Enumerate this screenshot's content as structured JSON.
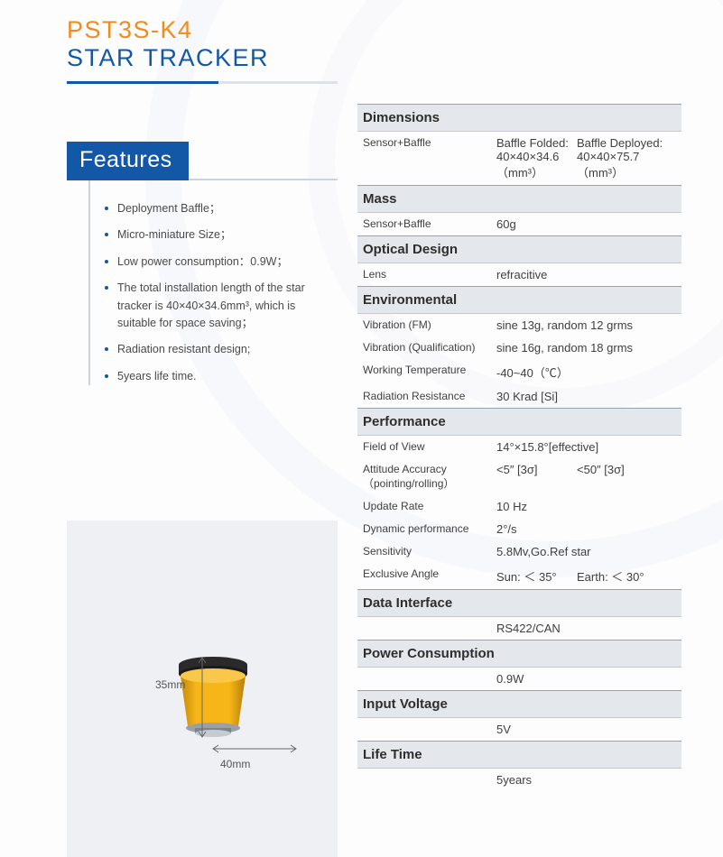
{
  "colors": {
    "accent": "#f28b1e",
    "accent_dark": "#1358a6",
    "heading_bg": "#1358a6",
    "section_bg": "#e4e7ec",
    "text": "#4a4a4a",
    "product_yellow": "#f7b618",
    "product_dark": "#2e2e2e",
    "frame_bg": "#eef0f3"
  },
  "title": {
    "line1": "PST3S-K4",
    "line2": "STAR TRACKER"
  },
  "features": {
    "heading": "Features",
    "items": [
      "Deployment Baffle；",
      "Micro-miniature Size；",
      "Low power consumption：0.9W；",
      "The total installation length of the star tracker is 40×40×34.6mm³, which is suitable for space saving；",
      "Radiation resistant design;",
      "5years life time."
    ]
  },
  "drawing": {
    "height_label": "35mm",
    "width_label": "40mm"
  },
  "spec_sections": [
    {
      "title": "Dimensions",
      "rows": [
        {
          "c1": "Sensor+Baffle",
          "c2": "Baffle Folded:\n40×40×34.6\n（mm³）",
          "c3": "Baffle Deployed:\n40×40×75.7\n（mm³）"
        }
      ]
    },
    {
      "title": "Mass",
      "rows": [
        {
          "c1": "Sensor+Baffle",
          "c2": "60g"
        }
      ]
    },
    {
      "title": "Optical Design",
      "rows": [
        {
          "c1": "Lens",
          "c2": "refracitive"
        }
      ]
    },
    {
      "title": "Environmental",
      "rows": [
        {
          "c1": "Vibration (FM)",
          "c2": "sine 13g, random 12 grms"
        },
        {
          "c1": "Vibration (Qualification)",
          "c2": "sine 16g, random 18 grms"
        },
        {
          "c1": "Working Temperature",
          "c2": "-40~40（℃）"
        },
        {
          "c1": "Radiation Resistance",
          "c2": "30 Krad [Si]"
        }
      ]
    },
    {
      "title": "Performance",
      "rows": [
        {
          "c1": "Field of View",
          "c2": "14°×15.8°[effective]"
        },
        {
          "c1": "Attitude Accuracy\n（pointing/rolling）",
          "c2": "<5″ [3σ]",
          "c3": "<50″ [3σ]"
        },
        {
          "c1": "Update Rate",
          "c2": "10 Hz"
        },
        {
          "c1": "Dynamic performance",
          "c2": "2°/s"
        },
        {
          "c1": "Sensitivity",
          "c2": "5.8Mv,Go.Ref star"
        },
        {
          "c1": "Exclusive Angle",
          "c2": "Sun: ＜ 35°",
          "c3": "Earth: ＜ 30°"
        }
      ]
    },
    {
      "title": "Data Interface",
      "rows": [
        {
          "c1": "",
          "c2": "RS422/CAN"
        }
      ]
    },
    {
      "title": "Power Consumption",
      "rows": [
        {
          "c1": "",
          "c2": "0.9W"
        }
      ]
    },
    {
      "title": "Input Voltage",
      "rows": [
        {
          "c1": "",
          "c2": "5V"
        }
      ]
    },
    {
      "title": "Life Time",
      "rows": [
        {
          "c1": "",
          "c2": "5years"
        }
      ]
    }
  ]
}
